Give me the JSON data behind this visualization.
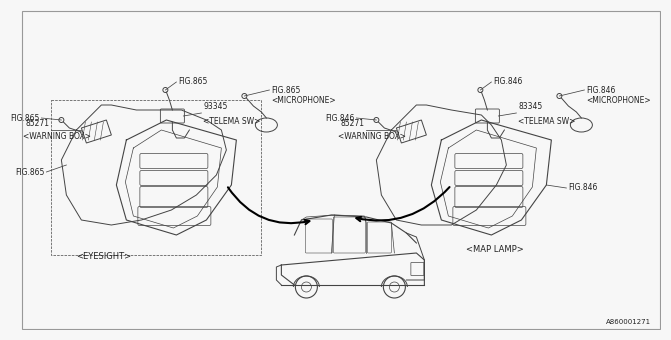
{
  "bg_color": "#f7f7f7",
  "line_color": "#444444",
  "text_color": "#222222",
  "diagram_id": "A860001271",
  "left_labels": {
    "fig865_tl": "FIG.865",
    "fig865_tc": "FIG.865",
    "fig865_micro": "FIG.865\n<MICROPHONE>",
    "part_85271": "85271",
    "warning_box": "<WARNING BOX>",
    "part_93345": "93345",
    "telema_sw": "<TELEMA SW>",
    "fig865_ml": "FIG.865",
    "eyesight": "<EYESIGHT>"
  },
  "right_labels": {
    "fig846_tl": "FIG.846",
    "fig846_tc": "FIG.846",
    "fig846_micro": "FIG.846\n<MICROPHONE>",
    "part_85271": "85271",
    "warning_box": "<WARNING BOX>",
    "part_83345": "83345",
    "telema_sw": "<TELEMA SW>",
    "fig846_br": "FIG.846",
    "map_lamp": "<MAP LAMP>"
  }
}
